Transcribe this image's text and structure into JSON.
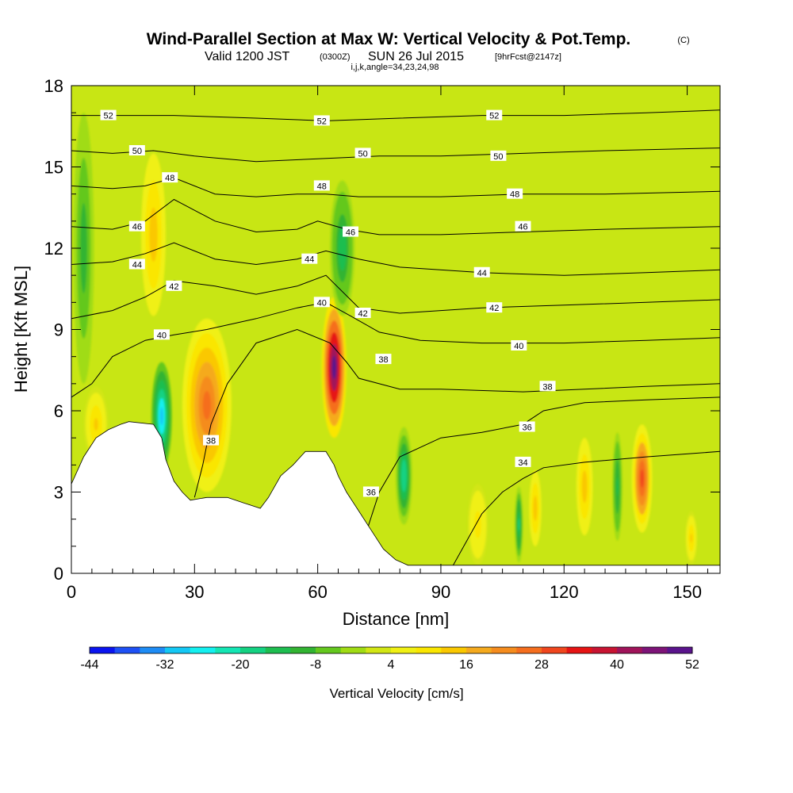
{
  "title": {
    "main": "Wind-Parallel Section at Max W: Vertical Velocity & Pot.Temp.",
    "copyright": "(C)",
    "valid_prefix": "Valid 1200 JST",
    "valid_utc": "(0300Z)",
    "valid_date": "SUN 26 Jul 2015",
    "forecast": "[9hrFcst@2147z]",
    "grid_info": "i,j,k,angle=34,23,24,98"
  },
  "chart_data": {
    "type": "heatmap",
    "xlabel": "Distance [nm]",
    "ylabel": "Height [Kft MSL]",
    "xlim": [
      0,
      158
    ],
    "ylim": [
      0,
      18
    ],
    "x_ticks": [
      0,
      30,
      60,
      90,
      120,
      150
    ],
    "x_tick_labels": [
      "0",
      "30",
      "60",
      "90",
      "120",
      "150"
    ],
    "y_ticks": [
      0,
      3,
      6,
      9,
      12,
      15,
      18
    ],
    "y_tick_labels": [
      "0",
      "3",
      "6",
      "9",
      "12",
      "15",
      "18"
    ],
    "colorbar": {
      "title": "Vertical Velocity [cm/s]",
      "tick_labels": [
        "-44",
        "-32",
        "-20",
        "-8",
        "4",
        "16",
        "28",
        "40",
        "52"
      ],
      "colors": [
        "#0a14f0",
        "#1e50f5",
        "#1e8cf5",
        "#14c8f5",
        "#14f0f0",
        "#14e6b4",
        "#14d282",
        "#1ebe50",
        "#32b432",
        "#64c81e",
        "#a0dc14",
        "#d2e614",
        "#f0f014",
        "#fae600",
        "#fac800",
        "#f5aa1e",
        "#f58c1e",
        "#f56e1e",
        "#f0461e",
        "#e61414",
        "#c81432",
        "#a0145a",
        "#7d1478",
        "#5a148c"
      ]
    },
    "terrain": [
      [
        0,
        3.3
      ],
      [
        3,
        4.3
      ],
      [
        6,
        5.0
      ],
      [
        9,
        5.3
      ],
      [
        12,
        5.5
      ],
      [
        14,
        5.6
      ],
      [
        20,
        5.5
      ],
      [
        22,
        5.0
      ],
      [
        23,
        4.2
      ],
      [
        25,
        3.4
      ],
      [
        27,
        3.0
      ],
      [
        29,
        2.7
      ],
      [
        33,
        2.8
      ],
      [
        38,
        2.8
      ],
      [
        42,
        2.6
      ],
      [
        46,
        2.4
      ],
      [
        48,
        2.8
      ],
      [
        51,
        3.6
      ],
      [
        54,
        4.0
      ],
      [
        57,
        4.5
      ],
      [
        60,
        4.5
      ],
      [
        62,
        4.5
      ],
      [
        64,
        4.0
      ],
      [
        65,
        3.6
      ],
      [
        67,
        3.0
      ],
      [
        70,
        2.3
      ],
      [
        73,
        1.6
      ],
      [
        76,
        0.9
      ],
      [
        79,
        0.5
      ],
      [
        82,
        0.3
      ],
      [
        158,
        0.3
      ]
    ],
    "theta_contours": [
      {
        "value": 34,
        "label": "34",
        "points": [
          [
            93,
            0.3
          ],
          [
            100,
            2.2
          ],
          [
            105,
            3.0
          ],
          [
            110,
            3.5
          ],
          [
            115,
            3.9
          ],
          [
            125,
            4.1
          ],
          [
            140,
            4.3
          ],
          [
            158,
            4.5
          ]
        ]
      },
      {
        "value": 36,
        "label": "36",
        "points": [
          [
            72,
            1.6
          ],
          [
            75,
            3.0
          ],
          [
            80,
            4.3
          ],
          [
            90,
            5.0
          ],
          [
            100,
            5.2
          ],
          [
            110,
            5.5
          ],
          [
            115,
            6.0
          ],
          [
            125,
            6.3
          ],
          [
            140,
            6.4
          ],
          [
            158,
            6.5
          ]
        ]
      },
      {
        "value": 38,
        "label": "38",
        "points": [
          [
            30,
            2.8
          ],
          [
            32,
            4.0
          ],
          [
            34,
            5.5
          ],
          [
            38,
            7.0
          ],
          [
            45,
            8.5
          ],
          [
            55,
            9.0
          ],
          [
            63,
            8.5
          ],
          [
            67,
            7.8
          ],
          [
            70,
            7.2
          ],
          [
            80,
            6.8
          ],
          [
            90,
            6.8
          ],
          [
            110,
            6.7
          ],
          [
            125,
            6.8
          ],
          [
            140,
            6.9
          ],
          [
            158,
            7.0
          ]
        ]
      },
      {
        "value": 40,
        "label": "40",
        "points": [
          [
            0,
            6.5
          ],
          [
            5,
            7.0
          ],
          [
            10,
            8.0
          ],
          [
            18,
            8.6
          ],
          [
            25,
            8.8
          ],
          [
            33,
            9.0
          ],
          [
            45,
            9.4
          ],
          [
            55,
            9.8
          ],
          [
            62,
            10.0
          ],
          [
            68,
            9.5
          ],
          [
            75,
            8.9
          ],
          [
            85,
            8.6
          ],
          [
            100,
            8.5
          ],
          [
            120,
            8.5
          ],
          [
            140,
            8.6
          ],
          [
            158,
            8.7
          ]
        ]
      },
      {
        "value": 42,
        "label": "42",
        "points": [
          [
            0,
            9.4
          ],
          [
            10,
            9.7
          ],
          [
            18,
            10.2
          ],
          [
            25,
            10.8
          ],
          [
            35,
            10.6
          ],
          [
            45,
            10.3
          ],
          [
            55,
            10.6
          ],
          [
            62,
            11.0
          ],
          [
            70,
            9.8
          ],
          [
            80,
            9.6
          ],
          [
            100,
            9.8
          ],
          [
            120,
            9.9
          ],
          [
            140,
            10.0
          ],
          [
            158,
            10.1
          ]
        ]
      },
      {
        "value": 44,
        "label": "44",
        "points": [
          [
            0,
            11.4
          ],
          [
            10,
            11.5
          ],
          [
            18,
            11.8
          ],
          [
            25,
            12.2
          ],
          [
            35,
            11.6
          ],
          [
            45,
            11.4
          ],
          [
            55,
            11.6
          ],
          [
            62,
            11.9
          ],
          [
            70,
            11.6
          ],
          [
            80,
            11.3
          ],
          [
            100,
            11.1
          ],
          [
            120,
            11.0
          ],
          [
            140,
            11.1
          ],
          [
            158,
            11.2
          ]
        ]
      },
      {
        "value": 46,
        "label": "46",
        "points": [
          [
            0,
            12.8
          ],
          [
            10,
            12.7
          ],
          [
            18,
            13.0
          ],
          [
            25,
            13.8
          ],
          [
            35,
            13.0
          ],
          [
            45,
            12.6
          ],
          [
            55,
            12.7
          ],
          [
            60,
            13.0
          ],
          [
            67,
            12.7
          ],
          [
            75,
            12.5
          ],
          [
            90,
            12.5
          ],
          [
            110,
            12.6
          ],
          [
            130,
            12.7
          ],
          [
            158,
            12.8
          ]
        ]
      },
      {
        "value": 48,
        "label": "48",
        "points": [
          [
            0,
            14.3
          ],
          [
            10,
            14.2
          ],
          [
            18,
            14.3
          ],
          [
            25,
            14.6
          ],
          [
            35,
            14.0
          ],
          [
            45,
            13.9
          ],
          [
            55,
            14.0
          ],
          [
            62,
            14.0
          ],
          [
            70,
            13.9
          ],
          [
            90,
            13.9
          ],
          [
            110,
            14.0
          ],
          [
            130,
            14.0
          ],
          [
            158,
            14.1
          ]
        ]
      },
      {
        "value": 50,
        "label": "50",
        "points": [
          [
            0,
            15.6
          ],
          [
            10,
            15.5
          ],
          [
            20,
            15.6
          ],
          [
            30,
            15.4
          ],
          [
            45,
            15.2
          ],
          [
            60,
            15.3
          ],
          [
            75,
            15.4
          ],
          [
            90,
            15.4
          ],
          [
            110,
            15.5
          ],
          [
            130,
            15.6
          ],
          [
            158,
            15.7
          ]
        ]
      },
      {
        "value": 52,
        "label": "52",
        "points": [
          [
            0,
            16.9
          ],
          [
            10,
            16.9
          ],
          [
            25,
            16.9
          ],
          [
            45,
            16.8
          ],
          [
            62,
            16.7
          ],
          [
            80,
            16.8
          ],
          [
            100,
            16.9
          ],
          [
            120,
            16.9
          ],
          [
            140,
            17.0
          ],
          [
            158,
            17.1
          ]
        ]
      }
    ],
    "contour_labels": [
      {
        "text": "52",
        "x": 9,
        "y": 16.9
      },
      {
        "text": "52",
        "x": 61,
        "y": 16.7
      },
      {
        "text": "52",
        "x": 103,
        "y": 16.9
      },
      {
        "text": "50",
        "x": 16,
        "y": 15.6
      },
      {
        "text": "50",
        "x": 71,
        "y": 15.5
      },
      {
        "text": "50",
        "x": 104,
        "y": 15.4
      },
      {
        "text": "48",
        "x": 24,
        "y": 14.6
      },
      {
        "text": "48",
        "x": 61,
        "y": 14.3
      },
      {
        "text": "48",
        "x": 108,
        "y": 14.0
      },
      {
        "text": "46",
        "x": 16,
        "y": 12.8
      },
      {
        "text": "46",
        "x": 68,
        "y": 12.6
      },
      {
        "text": "46",
        "x": 110,
        "y": 12.8
      },
      {
        "text": "44",
        "x": 16,
        "y": 11.4
      },
      {
        "text": "44",
        "x": 58,
        "y": 11.6
      },
      {
        "text": "44",
        "x": 100,
        "y": 11.1
      },
      {
        "text": "42",
        "x": 25,
        "y": 10.6
      },
      {
        "text": "42",
        "x": 71,
        "y": 9.6
      },
      {
        "text": "42",
        "x": 103,
        "y": 9.8
      },
      {
        "text": "40",
        "x": 22,
        "y": 8.8
      },
      {
        "text": "40",
        "x": 61,
        "y": 10.0
      },
      {
        "text": "40",
        "x": 109,
        "y": 8.4
      },
      {
        "text": "38",
        "x": 34,
        "y": 4.9
      },
      {
        "text": "38",
        "x": 76,
        "y": 7.9
      },
      {
        "text": "38",
        "x": 116,
        "y": 6.9
      },
      {
        "text": "36",
        "x": 73,
        "y": 3.0
      },
      {
        "text": "36",
        "x": 111,
        "y": 5.4
      },
      {
        "text": "34",
        "x": 110,
        "y": 4.1
      }
    ],
    "velocity_features": [
      {
        "x": 33,
        "y": 6.2,
        "w": 6,
        "h": 3.2,
        "value": 24
      },
      {
        "x": 64,
        "y": 7.6,
        "w": 3,
        "h": 2.6,
        "value": 50
      },
      {
        "x": 22,
        "y": 5.8,
        "w": 2.5,
        "h": 2.0,
        "value": -30
      },
      {
        "x": 66,
        "y": 12.0,
        "w": 3,
        "h": 2.5,
        "value": -16
      },
      {
        "x": 20,
        "y": 12.5,
        "w": 3,
        "h": 3.0,
        "value": 14
      },
      {
        "x": 81,
        "y": 3.6,
        "w": 2,
        "h": 1.8,
        "value": -20
      },
      {
        "x": 139,
        "y": 3.5,
        "w": 2.5,
        "h": 2.0,
        "value": 30
      },
      {
        "x": 133,
        "y": 3.2,
        "w": 1.2,
        "h": 2.0,
        "value": -14
      },
      {
        "x": 125,
        "y": 3.2,
        "w": 2,
        "h": 1.8,
        "value": 14
      },
      {
        "x": 113,
        "y": 2.4,
        "w": 1.5,
        "h": 1.4,
        "value": 14
      },
      {
        "x": 109,
        "y": 1.8,
        "w": 1,
        "h": 1.4,
        "value": -18
      },
      {
        "x": 3,
        "y": 12.0,
        "w": 2.5,
        "h": 5.0,
        "value": -10
      },
      {
        "x": 6,
        "y": 5.5,
        "w": 3,
        "h": 1.4,
        "value": 12
      },
      {
        "x": 99,
        "y": 1.8,
        "w": 2.5,
        "h": 1.5,
        "value": 10
      },
      {
        "x": 151,
        "y": 1.3,
        "w": 1.5,
        "h": 1.0,
        "value": 12
      }
    ]
  }
}
